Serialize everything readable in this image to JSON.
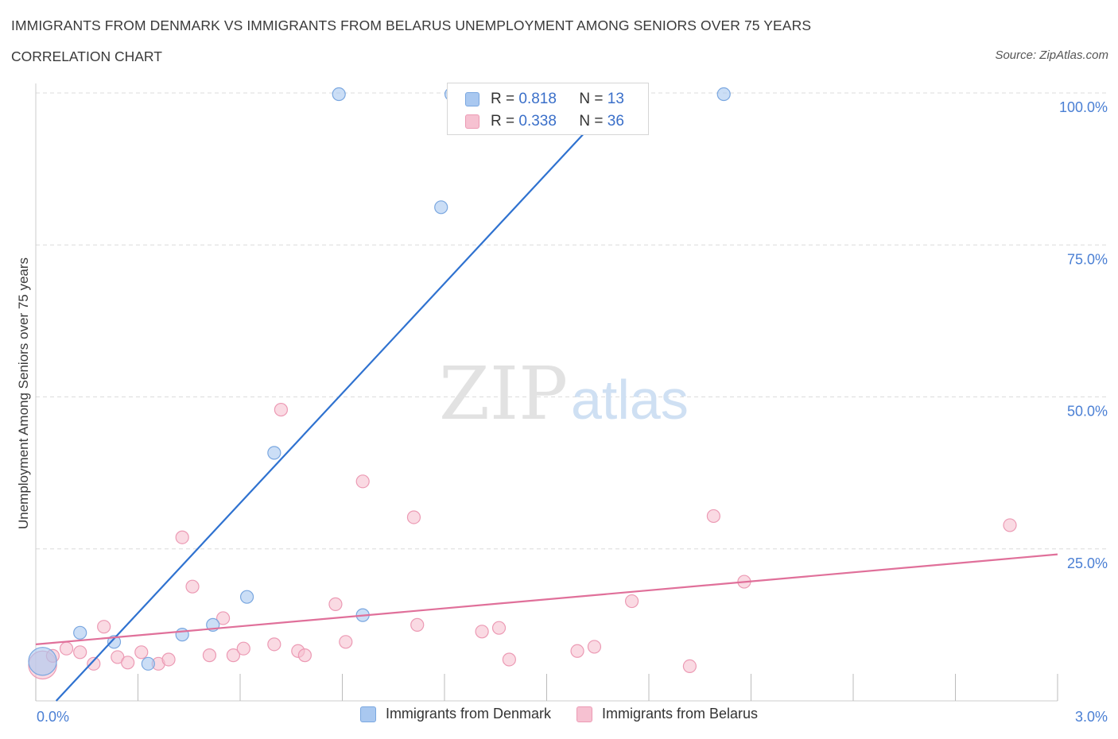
{
  "header": {
    "title": "IMMIGRANTS FROM DENMARK VS IMMIGRANTS FROM BELARUS UNEMPLOYMENT AMONG SENIORS OVER 75 YEARS",
    "subtitle": "CORRELATION CHART",
    "source": "Source: ZipAtlas.com"
  },
  "watermark": {
    "zip": "ZIP",
    "atlas": "atlas"
  },
  "legend": {
    "r_label": "R =",
    "n_label": "N =",
    "entries": [
      {
        "name": "Immigrants from Denmark",
        "r": "0.818",
        "n": "13",
        "color": "#a9c8f0",
        "stroke": "#7aa7e0"
      },
      {
        "name": "Immigrants from Belarus",
        "r": "0.338",
        "n": "36",
        "color": "#f6c1d1",
        "stroke": "#ec9ab4"
      }
    ]
  },
  "chart_data": {
    "type": "scatter",
    "title": "IMMIGRANTS FROM DENMARK VS IMMIGRANTS FROM BELARUS UNEMPLOYMENT AMONG SENIORS OVER 75 YEARS",
    "xlabel": "",
    "ylabel": "Unemployment Among Seniors over 75 years",
    "xlim": [
      0,
      3
    ],
    "ylim": [
      0,
      100
    ],
    "x_tick_labels": [
      {
        "value": 0,
        "label": "0.0%"
      },
      {
        "value": 3,
        "label": "3.0%"
      }
    ],
    "y_tick_labels": [
      {
        "value": 25,
        "label": "25.0%"
      },
      {
        "value": 50,
        "label": "50.0%"
      },
      {
        "value": 75,
        "label": "75.0%"
      },
      {
        "value": 100,
        "label": "100.0%"
      }
    ],
    "grid": true,
    "legend_position": "top-center",
    "series": [
      {
        "name": "Immigrants from Denmark",
        "color": "#a9c8f0",
        "stroke": "#7aa7e0",
        "line_color": "#2f72d0",
        "trend": [
          [
            0.06,
            0
          ],
          [
            1.72,
            100
          ]
        ],
        "points": [
          [
            0.02,
            6.5,
            2.2
          ],
          [
            0.13,
            11.2,
            1
          ],
          [
            0.23,
            9.7,
            1
          ],
          [
            0.33,
            6.1,
            1
          ],
          [
            0.43,
            10.9,
            1
          ],
          [
            0.52,
            12.5,
            1
          ],
          [
            0.62,
            17.1,
            1
          ],
          [
            0.7,
            40.8,
            1
          ],
          [
            0.89,
            99.8,
            1
          ],
          [
            0.96,
            14.1,
            1
          ],
          [
            1.19,
            81.2,
            1
          ],
          [
            1.22,
            99.8,
            1
          ],
          [
            2.02,
            99.8,
            1
          ]
        ]
      },
      {
        "name": "Immigrants from Belarus",
        "color": "#f6c1d1",
        "stroke": "#ec9ab4",
        "line_color": "#e0709a",
        "trend": [
          [
            0,
            9.3
          ],
          [
            3,
            24.1
          ]
        ],
        "points": [
          [
            0.02,
            5.9,
            2.2
          ],
          [
            0.05,
            7.4,
            1
          ],
          [
            0.09,
            8.6,
            1
          ],
          [
            0.13,
            8.0,
            1
          ],
          [
            0.17,
            6.1,
            1
          ],
          [
            0.2,
            12.2,
            1
          ],
          [
            0.24,
            7.2,
            1
          ],
          [
            0.27,
            6.3,
            1
          ],
          [
            0.31,
            8.0,
            1
          ],
          [
            0.36,
            6.1,
            1
          ],
          [
            0.39,
            6.8,
            1
          ],
          [
            0.43,
            26.9,
            1
          ],
          [
            0.46,
            18.8,
            1
          ],
          [
            0.51,
            7.5,
            1
          ],
          [
            0.55,
            13.6,
            1
          ],
          [
            0.58,
            7.5,
            1
          ],
          [
            0.61,
            8.6,
            1
          ],
          [
            0.7,
            9.3,
            1
          ],
          [
            0.72,
            47.9,
            1
          ],
          [
            0.77,
            8.2,
            1
          ],
          [
            0.79,
            7.5,
            1
          ],
          [
            0.88,
            15.9,
            1
          ],
          [
            0.91,
            9.7,
            1
          ],
          [
            0.96,
            36.1,
            1
          ],
          [
            1.11,
            30.2,
            1
          ],
          [
            1.12,
            12.5,
            1
          ],
          [
            1.31,
            11.4,
            1
          ],
          [
            1.36,
            12.0,
            1
          ],
          [
            1.39,
            6.8,
            1
          ],
          [
            1.59,
            8.2,
            1
          ],
          [
            1.64,
            8.9,
            1
          ],
          [
            1.75,
            16.4,
            1
          ],
          [
            1.92,
            5.7,
            1
          ],
          [
            1.99,
            30.4,
            1
          ],
          [
            2.08,
            19.6,
            1
          ],
          [
            2.86,
            28.9,
            1
          ]
        ]
      }
    ]
  }
}
